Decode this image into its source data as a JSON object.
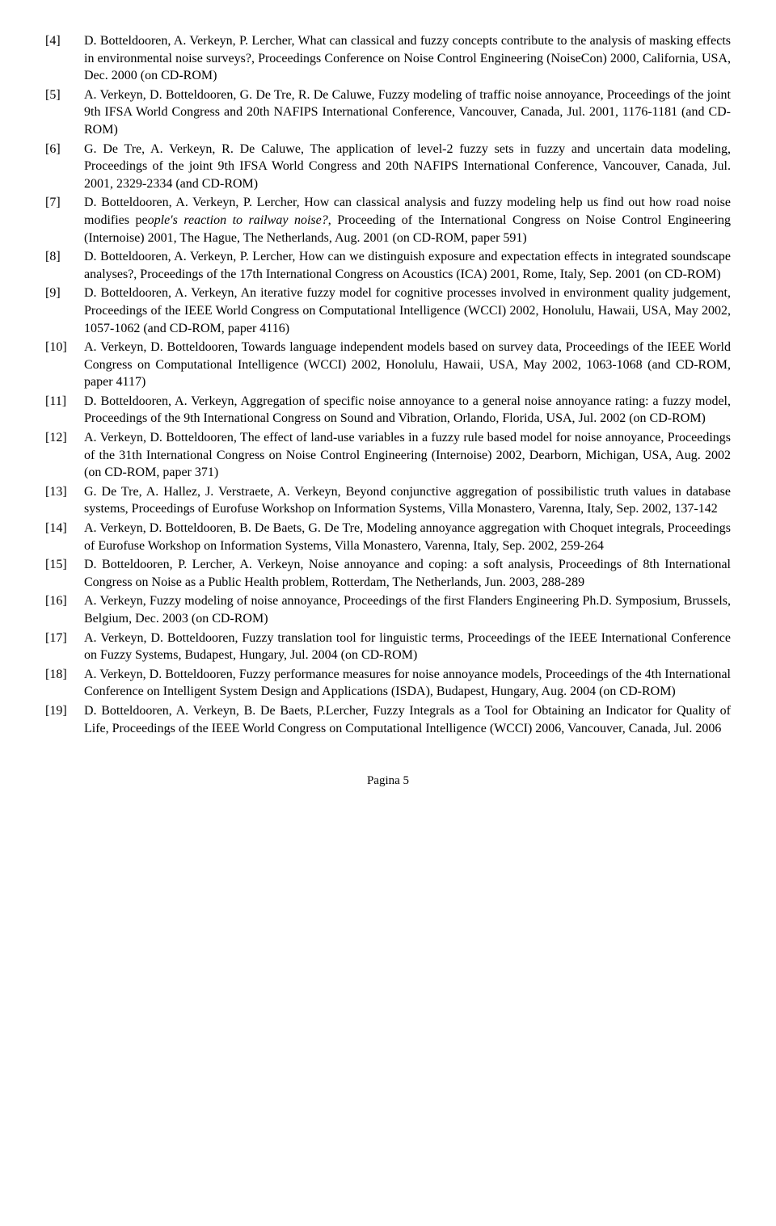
{
  "references": [
    {
      "num": "[4]",
      "pre": "D. Botteldooren, A. Verkeyn, P. Lercher, What can classical and fuzzy concepts contribute to the analysis of masking effects in environmental noise surveys?, Proceedings Conference on Noise Control Engineering (NoiseCon) 2000, California, USA, Dec. 2000 (on CD-ROM)",
      "italic": "",
      "post": ""
    },
    {
      "num": "[5]",
      "pre": "A. Verkeyn, D. Botteldooren, G. De Tre, R. De Caluwe, Fuzzy modeling of traffic noise annoyance, Proceedings of the joint 9th IFSA World Congress and 20th NAFIPS International Conference, Vancouver, Canada, Jul. 2001, 1176-1181 (and CD-ROM)",
      "italic": "",
      "post": ""
    },
    {
      "num": "[6]",
      "pre": "G. De Tre, A. Verkeyn, R. De Caluwe, The application of level-2 fuzzy sets in fuzzy and uncertain data modeling, Proceedings of the joint 9th IFSA World Congress and 20th NAFIPS International Conference, Vancouver, Canada, Jul. 2001, 2329-2334 (and CD-ROM)",
      "italic": "",
      "post": ""
    },
    {
      "num": "[7]",
      "pre": "D. Botteldooren, A. Verkeyn, P. Lercher, How can classical analysis and fuzzy modeling help us find out how road noise modifies pe",
      "italic": "ople's reaction to railway noise?",
      "post": ", Proceeding of the International Congress on Noise Control Engineering (Internoise) 2001, The Hague, The Netherlands, Aug. 2001 (on CD-ROM, paper 591)"
    },
    {
      "num": "[8]",
      "pre": "D. Botteldooren, A. Verkeyn, P. Lercher, How can we distinguish exposure and expectation effects in integrated soundscape analyses?, Proceedings of the 17th International Congress on Acoustics (ICA) 2001, Rome, Italy, Sep. 2001 (on CD-ROM)",
      "italic": "",
      "post": ""
    },
    {
      "num": "[9]",
      "pre": "D. Botteldooren, A. Verkeyn, An iterative fuzzy model for cognitive processes involved in environment quality judgement, Proceedings of the IEEE World Congress on Computational Intelligence (WCCI) 2002, Honolulu, Hawaii, USA, May 2002, 1057-1062 (and CD-ROM, paper 4116)",
      "italic": "",
      "post": ""
    },
    {
      "num": "[10]",
      "pre": "A. Verkeyn, D. Botteldooren, Towards language independent models based on survey data, Proceedings of the IEEE World Congress on Computational Intelligence (WCCI) 2002, Honolulu, Hawaii, USA, May 2002, 1063-1068 (and CD-ROM, paper 4117)",
      "italic": "",
      "post": ""
    },
    {
      "num": "[11]",
      "pre": "D. Botteldooren, A. Verkeyn, Aggregation of specific noise annoyance to a general noise annoyance rating: a fuzzy model, Proceedings of the 9th International Congress on Sound and Vibration, Orlando, Florida, USA, Jul. 2002 (on CD-ROM)",
      "italic": "",
      "post": ""
    },
    {
      "num": "[12]",
      "pre": "A. Verkeyn, D. Botteldooren, The effect of land-use variables in a fuzzy rule based model for noise annoyance, Proceedings of the 31th International Congress on Noise Control Engineering (Internoise) 2002, Dearborn, Michigan, USA, Aug. 2002 (on CD-ROM, paper 371)",
      "italic": "",
      "post": ""
    },
    {
      "num": "[13]",
      "pre": "G. De Tre, A. Hallez, J. Verstraete, A. Verkeyn, Beyond conjunctive aggregation of possibilistic truth values in database systems, Proceedings of Eurofuse Workshop on Information Systems, Villa Monastero, Varenna, Italy, Sep. 2002, 137-142",
      "italic": "",
      "post": ""
    },
    {
      "num": "[14]",
      "pre": "A. Verkeyn, D. Botteldooren, B. De Baets, G. De Tre, Modeling annoyance aggregation with Choquet integrals, Proceedings of Eurofuse Workshop on Information Systems, Villa Monastero, Varenna, Italy, Sep. 2002,  259-264",
      "italic": "",
      "post": ""
    },
    {
      "num": "[15]",
      "pre": "D. Botteldooren, P. Lercher, A. Verkeyn, Noise annoyance and coping: a soft analysis, Proceedings of 8th International Congress on Noise as a Public Health problem, Rotterdam, The Netherlands, Jun. 2003, 288-289",
      "italic": "",
      "post": ""
    },
    {
      "num": "[16]",
      "pre": "A. Verkeyn, Fuzzy modeling of noise annoyance, Proceedings of the first Flanders Engineering Ph.D. Symposium, Brussels, Belgium, Dec. 2003 (on CD-ROM)",
      "italic": "",
      "post": ""
    },
    {
      "num": "[17]",
      "pre": "A. Verkeyn, D. Botteldooren, Fuzzy translation tool for linguistic terms, Proceedings of the IEEE International Conference on Fuzzy Systems, Budapest, Hungary, Jul. 2004 (on CD-ROM)",
      "italic": "",
      "post": ""
    },
    {
      "num": "[18]",
      "pre": "A. Verkeyn, D. Botteldooren, Fuzzy performance measures for noise annoyance models, Proceedings of the 4th International Conference on Intelligent System Design and Applications (ISDA), Budapest, Hungary, Aug. 2004 (on CD-ROM)",
      "italic": "",
      "post": ""
    },
    {
      "num": "[19]",
      "pre": "D. Botteldooren, A. Verkeyn, B. De Baets, P.Lercher, Fuzzy Integrals as a Tool for Obtaining an Indicator for Quality of Life, Proceedings of the IEEE World Congress on Computational Intelligence (WCCI) 2006, Vancouver, Canada, Jul. 2006",
      "italic": "",
      "post": ""
    }
  ],
  "footer": "Pagina 5"
}
